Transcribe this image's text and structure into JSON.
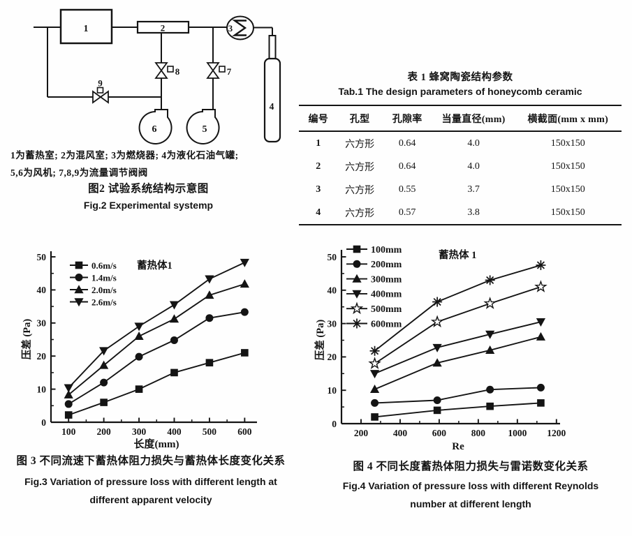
{
  "page": {
    "bg": "#fefefe",
    "ink": "#141414"
  },
  "schematic": {
    "component_labels": {
      "regenerator": "1",
      "mixing_chamber": "2",
      "burner": "3",
      "gas_tank": "4",
      "fan_right": "5",
      "fan_left": "6",
      "valve_right": "7",
      "valve_left": "8",
      "valve_bypass": "9"
    },
    "burner_symbol": "Σ",
    "legend_line1": "1为蓄热室; 2为混风室; 3为燃烧器; 4为液化石油气罐;",
    "legend_line2": "5,6为风机; 7,8,9为流量调节阀阀",
    "caption_zh": "图2 试验系统结构示意图",
    "caption_en": "Fig.2 Experimental systemp"
  },
  "table": {
    "title_zh": "表 1 蜂窝陶瓷结构参数",
    "title_en": "Tab.1 The design parameters of honeycomb ceramic",
    "headers": [
      "编号",
      "孔型",
      "孔隙率",
      "当量直径(mm)",
      "横截面(mm x mm)"
    ],
    "rows": [
      [
        "1",
        "六方形",
        "0.64",
        "4.0",
        "150x150"
      ],
      [
        "2",
        "六方形",
        "0.64",
        "4.0",
        "150x150"
      ],
      [
        "3",
        "六方形",
        "0.55",
        "3.7",
        "150x150"
      ],
      [
        "4",
        "六方形",
        "0.57",
        "3.8",
        "150x150"
      ]
    ]
  },
  "chart_data": [
    {
      "id": "fig3",
      "type": "line",
      "annotation": "蓄热体1",
      "xlabel": "长度(mm)",
      "ylabel": "压差 (Pa)",
      "xlim": [
        50,
        635
      ],
      "ylim": [
        0,
        50
      ],
      "xticks": [
        100,
        200,
        300,
        400,
        500,
        600
      ],
      "xminorticks": [
        150,
        250,
        350,
        450,
        550
      ],
      "yticks": [
        0,
        10,
        20,
        30,
        40,
        50
      ],
      "yminorticks": [
        5,
        15,
        25,
        35,
        45
      ],
      "x": [
        100,
        200,
        300,
        400,
        500,
        600
      ],
      "series": [
        {
          "name": "0.6m/s",
          "marker": "square",
          "values": [
            2.2,
            6,
            10,
            15,
            18,
            21
          ]
        },
        {
          "name": "1.4m/s",
          "marker": "circle",
          "values": [
            5.5,
            12,
            19.8,
            24.8,
            31.5,
            33.3
          ]
        },
        {
          "name": "2.0m/s",
          "marker": "triangle-up",
          "values": [
            8.3,
            17.2,
            26,
            31.2,
            38.4,
            41.8
          ]
        },
        {
          "name": "2.6m/s",
          "marker": "triangle-down",
          "values": [
            10.4,
            21.6,
            29,
            35.5,
            43.3,
            48.3
          ]
        }
      ],
      "legend_position": "top-left",
      "grid": false
    },
    {
      "id": "fig4",
      "type": "line",
      "annotation": "蓄热体 1",
      "xlabel": "Re",
      "ylabel": "压差 (Pa)",
      "xlim": [
        100,
        1240
      ],
      "ylim": [
        0,
        50
      ],
      "xticks": [
        200,
        400,
        600,
        800,
        1000,
        1200
      ],
      "xminorticks": [
        300,
        500,
        700,
        900,
        1100
      ],
      "yticks": [
        0,
        10,
        20,
        30,
        40,
        50
      ],
      "yminorticks": [
        5,
        15,
        25,
        35,
        45
      ],
      "x": [
        270,
        590,
        860,
        1120
      ],
      "series": [
        {
          "name": "100mm",
          "marker": "square",
          "values": [
            2,
            4,
            5.2,
            6.2
          ]
        },
        {
          "name": "200mm",
          "marker": "circle",
          "values": [
            6.2,
            7,
            10.2,
            10.8
          ]
        },
        {
          "name": "300mm",
          "marker": "triangle-up",
          "values": [
            10.3,
            18.2,
            22,
            26
          ]
        },
        {
          "name": "400mm",
          "marker": "triangle-down",
          "values": [
            15,
            22.8,
            26.8,
            30.5
          ]
        },
        {
          "name": "500mm",
          "marker": "star",
          "values": [
            18,
            30.5,
            36,
            41
          ]
        },
        {
          "name": "600mm",
          "marker": "asterisk",
          "values": [
            21.8,
            36.5,
            43,
            47.5
          ]
        }
      ],
      "legend_position": "top-left",
      "grid": false
    }
  ],
  "fig3_captions": {
    "zh": "图 3 不同流速下蓄热体阻力损失与蓄热体长度变化关系",
    "en1": "Fig.3 Variation of pressure loss with different length at",
    "en2": "different apparent velocity"
  },
  "fig4_captions": {
    "zh": "图 4 不同长度蓄热体阻力损失与雷诺数变化关系",
    "en1": "Fig.4 Variation of pressure loss with different Reynolds",
    "en2": "number at different length"
  }
}
